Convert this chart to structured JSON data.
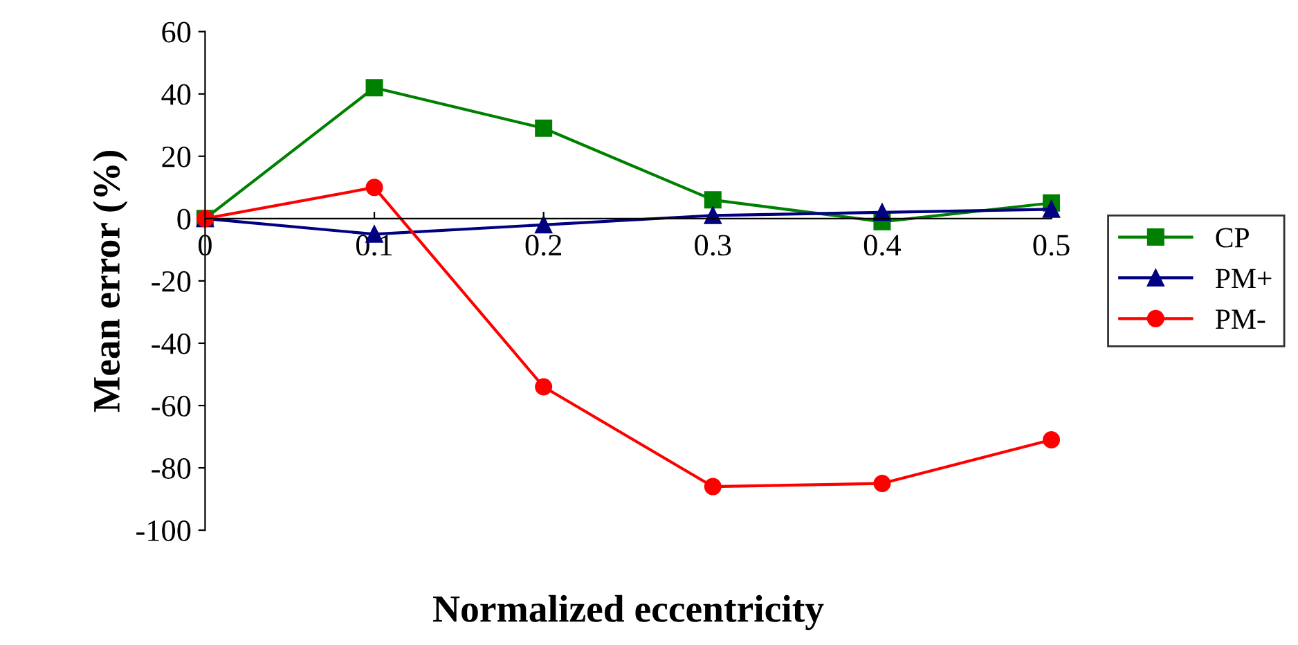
{
  "chart_data": {
    "type": "line",
    "xlabel": "Normalized eccentricity",
    "ylabel": "Mean error (%)",
    "x": [
      0,
      0.1,
      0.2,
      0.3,
      0.4,
      0.5
    ],
    "xlim": [
      0,
      0.5
    ],
    "xticks": [
      0,
      0.1,
      0.2,
      0.3,
      0.4,
      0.5
    ],
    "ylim": [
      -100,
      60
    ],
    "yticks": [
      -100,
      -80,
      -60,
      -40,
      -20,
      0,
      20,
      40,
      60
    ],
    "grid": false,
    "legend": "right",
    "series": [
      {
        "name": "CP",
        "color": "#008000",
        "marker": "square",
        "values": [
          0,
          42,
          29,
          6,
          -1,
          5
        ]
      },
      {
        "name": "PM+",
        "color": "#000080",
        "marker": "triangle",
        "values": [
          0,
          -5,
          -2,
          1,
          2,
          3
        ]
      },
      {
        "name": "PM-",
        "color": "#ff0000",
        "marker": "circle",
        "values": [
          0,
          10,
          -54,
          -86,
          -85,
          -71
        ]
      }
    ]
  }
}
